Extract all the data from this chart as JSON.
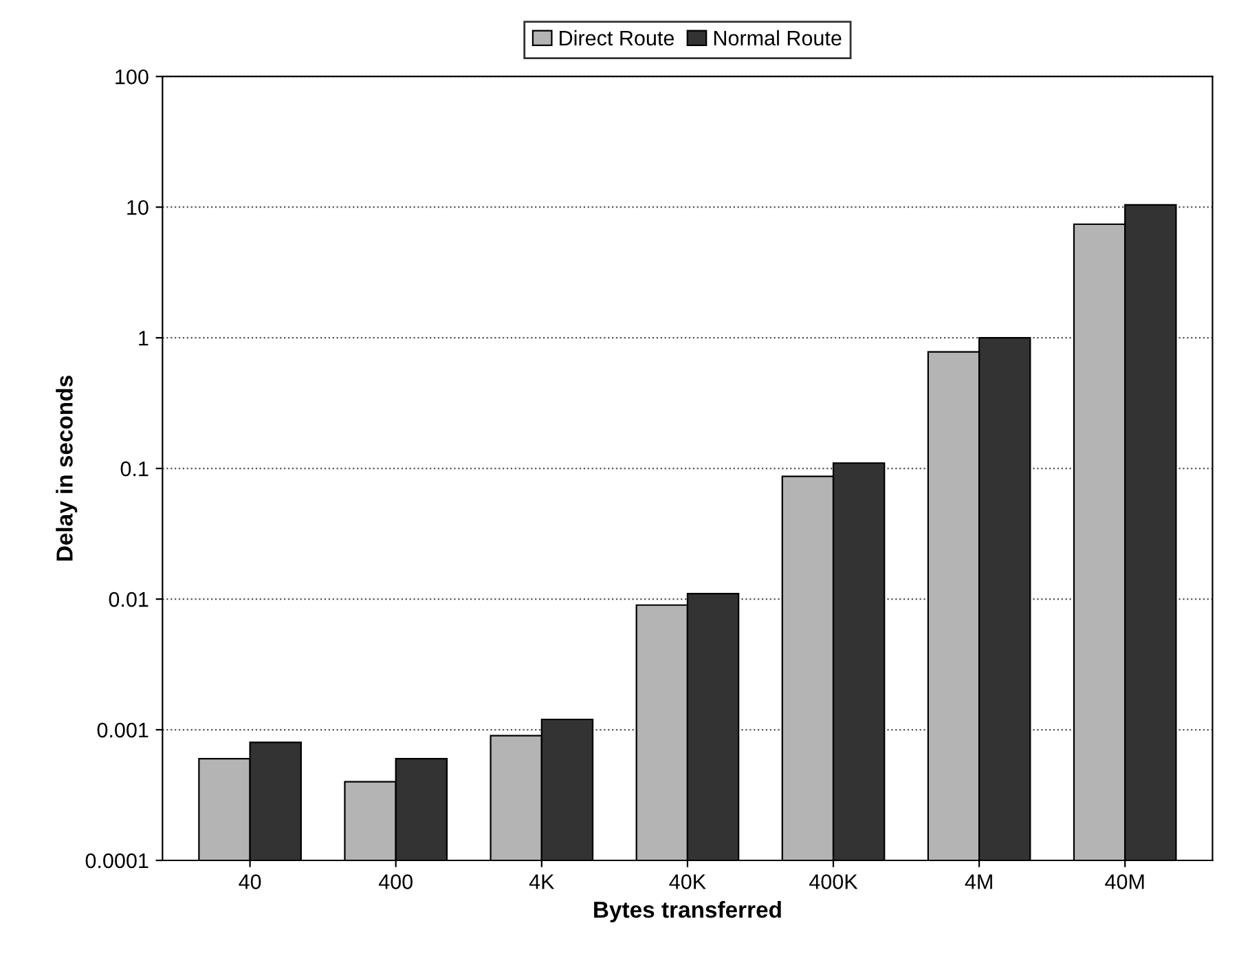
{
  "chart_data": {
    "type": "bar",
    "xlabel": "Bytes transferred",
    "ylabel": "Delay in seconds",
    "categories": [
      "40",
      "400",
      "4K",
      "40K",
      "400K",
      "4M",
      "40M"
    ],
    "series": [
      {
        "name": "Direct Route",
        "color": "#b4b4b4",
        "values": [
          0.0006,
          0.0004,
          0.0009,
          0.009,
          0.087,
          0.78,
          7.4
        ]
      },
      {
        "name": "Normal Route",
        "color": "#333333",
        "values": [
          0.0008,
          0.0006,
          0.0012,
          0.011,
          0.11,
          1.0,
          10.4
        ]
      }
    ],
    "log": "y",
    "ylim": [
      0.0001,
      100
    ],
    "yticks": [
      {
        "value": 0.0001,
        "label": "0.0001"
      },
      {
        "value": 0.001,
        "label": "0.001"
      },
      {
        "value": 0.01,
        "label": "0.01"
      },
      {
        "value": 0.1,
        "label": "0.1"
      },
      1,
      10,
      100
    ],
    "grid": "y",
    "legend": "top"
  }
}
